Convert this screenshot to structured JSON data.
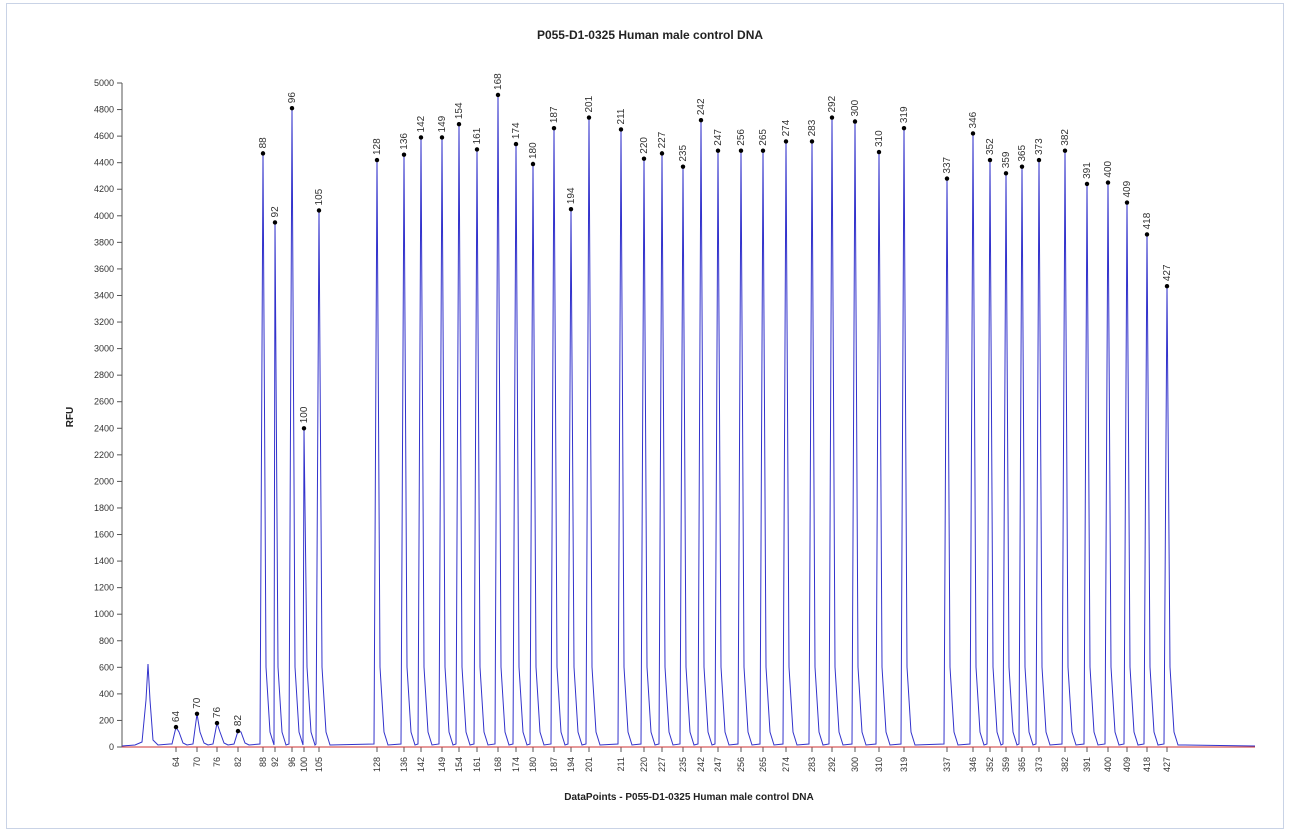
{
  "chart_data": {
    "type": "line",
    "title": "P055-D1-0325 Human male control DNA",
    "xlabel": "DataPoints - P055-D1-0325 Human male control DNA",
    "ylabel": "RFU",
    "ylim": [
      0,
      5000
    ],
    "yticks": [
      0,
      200,
      400,
      600,
      800,
      1000,
      1200,
      1400,
      1600,
      1800,
      2000,
      2200,
      2400,
      2600,
      2800,
      3000,
      3200,
      3400,
      3600,
      3800,
      4000,
      4200,
      4400,
      4600,
      4800,
      5000
    ],
    "grid": false,
    "colors": {
      "trace": "#3333cc",
      "baseline": "#cc3333",
      "marker": "#000000"
    },
    "peaks": [
      {
        "label": "64",
        "rfu": 150
      },
      {
        "label": "70",
        "rfu": 250
      },
      {
        "label": "76",
        "rfu": 180
      },
      {
        "label": "82",
        "rfu": 120
      },
      {
        "label": "88",
        "rfu": 4470
      },
      {
        "label": "92",
        "rfu": 3950
      },
      {
        "label": "96",
        "rfu": 4810
      },
      {
        "label": "100",
        "rfu": 2400
      },
      {
        "label": "105",
        "rfu": 4040
      },
      {
        "label": "128",
        "rfu": 4420
      },
      {
        "label": "136",
        "rfu": 4460
      },
      {
        "label": "142",
        "rfu": 4590
      },
      {
        "label": "149",
        "rfu": 4590
      },
      {
        "label": "154",
        "rfu": 4690
      },
      {
        "label": "161",
        "rfu": 4500
      },
      {
        "label": "168",
        "rfu": 4910
      },
      {
        "label": "174",
        "rfu": 4540
      },
      {
        "label": "180",
        "rfu": 4390
      },
      {
        "label": "187",
        "rfu": 4660
      },
      {
        "label": "194",
        "rfu": 4050
      },
      {
        "label": "201",
        "rfu": 4740
      },
      {
        "label": "211",
        "rfu": 4650
      },
      {
        "label": "220",
        "rfu": 4430
      },
      {
        "label": "227",
        "rfu": 4470
      },
      {
        "label": "235",
        "rfu": 4370
      },
      {
        "label": "242",
        "rfu": 4720
      },
      {
        "label": "247",
        "rfu": 4490
      },
      {
        "label": "256",
        "rfu": 4490
      },
      {
        "label": "265",
        "rfu": 4490
      },
      {
        "label": "274",
        "rfu": 4560
      },
      {
        "label": "283",
        "rfu": 4560
      },
      {
        "label": "292",
        "rfu": 4740
      },
      {
        "label": "300",
        "rfu": 4710
      },
      {
        "label": "310",
        "rfu": 4480
      },
      {
        "label": "319",
        "rfu": 4660
      },
      {
        "label": "337",
        "rfu": 4280
      },
      {
        "label": "346",
        "rfu": 4620
      },
      {
        "label": "352",
        "rfu": 4420
      },
      {
        "label": "359",
        "rfu": 4320
      },
      {
        "label": "365",
        "rfu": 4370
      },
      {
        "label": "373",
        "rfu": 4420
      },
      {
        "label": "382",
        "rfu": 4490
      },
      {
        "label": "391",
        "rfu": 4240
      },
      {
        "label": "400",
        "rfu": 4250
      },
      {
        "label": "409",
        "rfu": 4100
      },
      {
        "label": "418",
        "rfu": 3860
      },
      {
        "label": "427",
        "rfu": 3470
      }
    ]
  }
}
